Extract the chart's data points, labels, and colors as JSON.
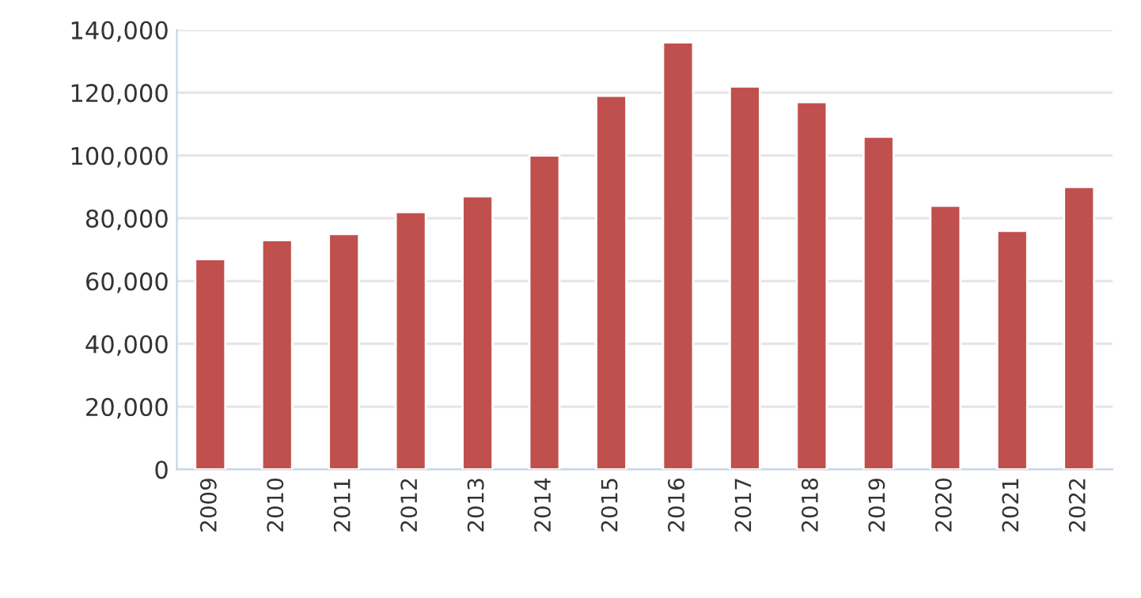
{
  "chart_data": {
    "type": "bar",
    "categories": [
      "2009",
      "2010",
      "2011",
      "2012",
      "2013",
      "2014",
      "2015",
      "2016",
      "2017",
      "2018",
      "2019",
      "2020",
      "2021",
      "2022"
    ],
    "values": [
      67000,
      73000,
      75000,
      82000,
      87000,
      100000,
      119000,
      136000,
      122000,
      117000,
      106000,
      84000,
      76000,
      90000
    ],
    "color": "#c0504d",
    "ylim": [
      0,
      140000
    ],
    "yticks": [
      {
        "value": 0,
        "label": "0"
      },
      {
        "value": 20000,
        "label": "20,000"
      },
      {
        "value": 40000,
        "label": "40,000"
      },
      {
        "value": 60000,
        "label": "60,000"
      },
      {
        "value": 80000,
        "label": "80,000"
      },
      {
        "value": 100000,
        "label": "100,000"
      },
      {
        "value": 120000,
        "label": "120,000"
      },
      {
        "value": 140000,
        "label": "140,000"
      }
    ],
    "grid": "y"
  }
}
